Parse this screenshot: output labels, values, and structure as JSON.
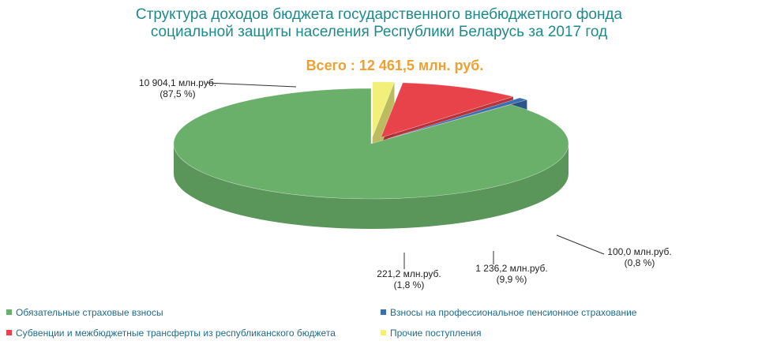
{
  "chart_data": {
    "type": "pie",
    "title_lines": [
      "Структура доходов бюджета государственного внебюджетного фонда",
      "социальной  защиты населения  Республики  Беларусь за 2017 год"
    ],
    "total_label": "Всего : 12 461,5 млн. руб.",
    "series": [
      {
        "name": "Обязательные  страховые  взносы",
        "value": 10904.1,
        "percent": 87.5,
        "value_label": "10 904,1 млн.руб.",
        "percent_label": "(87,5 %)",
        "color": "#6aaf6a"
      },
      {
        "name": "Взносы на профессиональное  пенсионное  страхование",
        "value": 100.0,
        "percent": 0.8,
        "value_label": "100,0 млн.руб.",
        "percent_label": "(0,8 %)",
        "color": "#3a6fb0"
      },
      {
        "name": "Субвенции  и межбюджетные  трансферты  из республиканского  бюджета",
        "value": 1236.2,
        "percent": 9.9,
        "value_label": "1 236,2 млн.руб.",
        "percent_label": "(9,9 %)",
        "color": "#e8434b"
      },
      {
        "name": "Прочие  поступления",
        "value": 221.2,
        "percent": 1.8,
        "value_label": "221,2 млн.руб.",
        "percent_label": "(1,8 %)",
        "color": "#f2f07a"
      }
    ]
  }
}
